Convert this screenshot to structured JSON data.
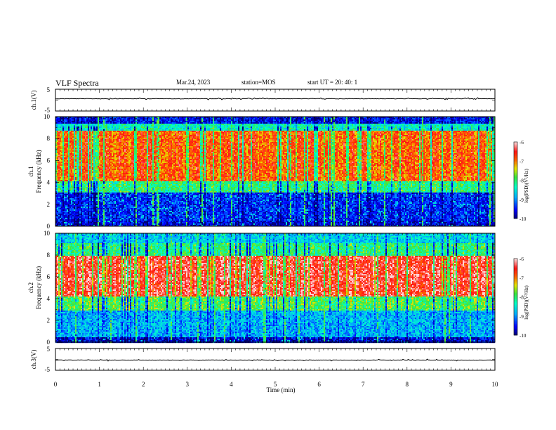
{
  "header": {
    "title": "VLF Spectra",
    "date": "Mar.24, 2023",
    "station": "station=MOS",
    "start": "start  UT  =   20: 40: 1"
  },
  "chart_data": [
    {
      "type": "line",
      "panel": "ch1-waveform",
      "ylabel": "ch.1(V)",
      "yticks": [
        "5",
        "-5"
      ],
      "ylim": [
        -5,
        5
      ],
      "xlim": [
        0,
        10
      ],
      "series": [
        {
          "values_summary": "flat near 0 V with small spikes",
          "level": 0
        }
      ]
    },
    {
      "type": "heatmap",
      "panel": "ch1-spectrogram",
      "ylabel": "ch.1\nFrequency (kHz)",
      "yticks": [
        "0",
        "2",
        "4",
        "6",
        "8",
        "10"
      ],
      "ylim": [
        0,
        10
      ],
      "xlim": [
        0,
        10
      ],
      "colorbar": {
        "label": "log(PSD)(V²/Hz)",
        "ticks": [
          "-6",
          "-7",
          "-8",
          "-9",
          "-10"
        ],
        "range": [
          -10,
          -6
        ]
      },
      "bands": [
        {
          "from_khz": 0,
          "to_khz": 0.6,
          "log_psd": -9.6
        },
        {
          "from_khz": 0.6,
          "to_khz": 3.2,
          "log_psd": -9.4
        },
        {
          "from_khz": 3.2,
          "to_khz": 4.2,
          "log_psd": -8.0
        },
        {
          "from_khz": 4.2,
          "to_khz": 8.8,
          "log_psd": -6.8
        },
        {
          "from_khz": 8.8,
          "to_khz": 9.4,
          "log_psd": -8.3
        },
        {
          "from_khz": 9.4,
          "to_khz": 10,
          "log_psd": -9.5
        }
      ]
    },
    {
      "type": "heatmap",
      "panel": "ch2-spectrogram",
      "ylabel": "ch.2\nFrequency (kHz)",
      "yticks": [
        "0",
        "2",
        "4",
        "6",
        "8",
        "10"
      ],
      "ylim": [
        0,
        10
      ],
      "xlim": [
        0,
        10
      ],
      "colorbar": {
        "label": "log(PSD)(V²/Hz)",
        "ticks": [
          "-6",
          "-7",
          "-8",
          "-9",
          "-10"
        ],
        "range": [
          -10,
          -6
        ]
      },
      "bands": [
        {
          "from_khz": 0,
          "to_khz": 0.5,
          "log_psd": -9.6
        },
        {
          "from_khz": 0.5,
          "to_khz": 3.0,
          "log_psd": -8.8
        },
        {
          "from_khz": 3.0,
          "to_khz": 4.2,
          "log_psd": -7.8
        },
        {
          "from_khz": 4.2,
          "to_khz": 8.0,
          "log_psd": -6.4
        },
        {
          "from_khz": 8.0,
          "to_khz": 9.2,
          "log_psd": -8.0
        },
        {
          "from_khz": 9.2,
          "to_khz": 10,
          "log_psd": -8.6
        }
      ]
    },
    {
      "type": "line",
      "panel": "ch3-waveform",
      "ylabel": "ch.3(V)",
      "yticks": [
        "5",
        "-5"
      ],
      "ylim": [
        -5,
        5
      ],
      "xlim": [
        0,
        10
      ],
      "xlabel": "Time  (min)",
      "xticks": [
        "0",
        "1",
        "2",
        "3",
        "4",
        "5",
        "6",
        "7",
        "8",
        "9",
        "10"
      ],
      "series": [
        {
          "values_summary": "flat near 0 V",
          "level": 0
        }
      ]
    }
  ]
}
